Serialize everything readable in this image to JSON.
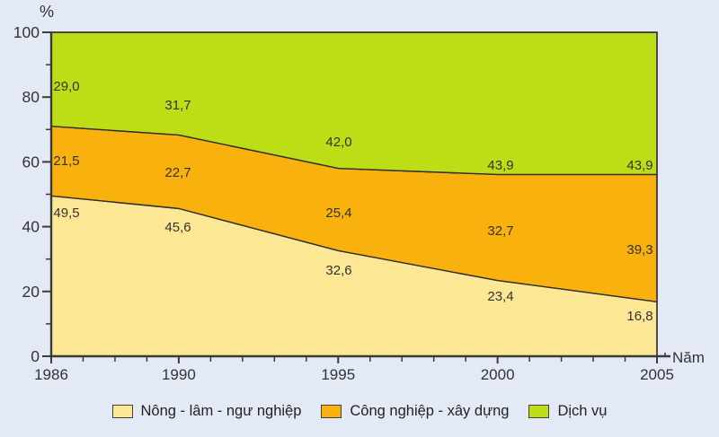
{
  "chart_data": {
    "type": "area",
    "stacked": true,
    "title": "",
    "ylabel": "%",
    "xlabel": "Năm",
    "x": [
      1986,
      1990,
      1995,
      2000,
      2005
    ],
    "x_tick_labels": [
      "1986",
      "1990",
      "1995",
      "2000",
      "2005"
    ],
    "x_minor_tick_every_year": true,
    "ylim": [
      0,
      100
    ],
    "y_major_ticks": [
      0,
      20,
      40,
      60,
      80,
      100
    ],
    "y_minor_step": 10,
    "grid": false,
    "legend_position": "bottom",
    "series": [
      {
        "name": "Nông - lâm - ngư nghiệp",
        "color": "#fce794",
        "values": [
          49.5,
          45.6,
          32.6,
          23.4,
          16.8
        ],
        "value_labels": [
          "49,5",
          "45,6",
          "32,6",
          "23,4",
          "16,8"
        ]
      },
      {
        "name": "Công nghiệp - xây dựng",
        "color": "#f9b20d",
        "values": [
          21.5,
          22.7,
          25.4,
          32.7,
          39.3
        ],
        "value_labels": [
          "21,5",
          "22,7",
          "25,4",
          "32,7",
          "39,3"
        ]
      },
      {
        "name": "Dịch vụ",
        "color": "#bdde17",
        "values": [
          29.0,
          31.7,
          42.0,
          43.9,
          43.9
        ],
        "value_labels": [
          "29,0",
          "31,7",
          "42,0",
          "43,9",
          "43,9"
        ]
      }
    ]
  },
  "colors": {
    "background": "#e3e9f5",
    "axis": "#3a3a3a",
    "area_outline": "#2e2e2e",
    "text": "#333333"
  }
}
